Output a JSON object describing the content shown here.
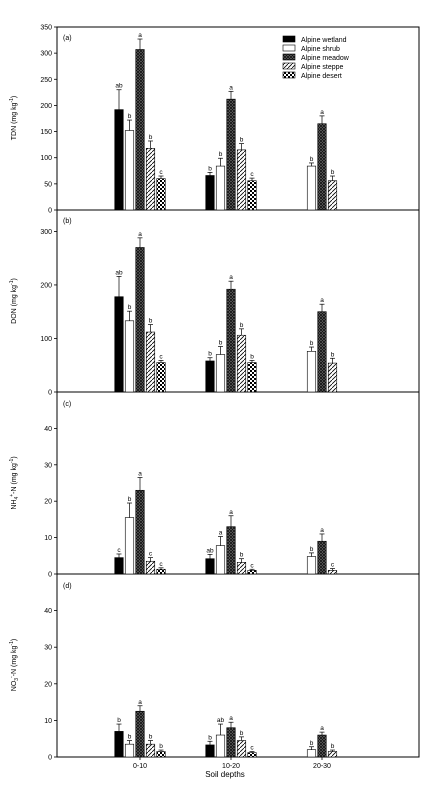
{
  "chart_data": {
    "type": "bar",
    "xlabel": "Soil depths",
    "categories": [
      "0-10",
      "10-20",
      "20-30"
    ],
    "legend": {
      "placement": "top-right",
      "entries": [
        "Alpine wetland",
        "Alpine shrub",
        "Alpine meadow",
        "Alpine steppe",
        "Alpine desert"
      ]
    },
    "series_styles": [
      {
        "name": "Alpine wetland",
        "fill": "#000000",
        "pattern": "solid"
      },
      {
        "name": "Alpine shrub",
        "fill": "#ffffff",
        "pattern": "open"
      },
      {
        "name": "Alpine meadow",
        "fill": "#555555",
        "pattern": "crosshatch"
      },
      {
        "name": "Alpine steppe",
        "fill": "#ffffff",
        "pattern": "diagonal"
      },
      {
        "name": "Alpine desert",
        "fill": "#ffffff",
        "pattern": "checker"
      }
    ],
    "panels": [
      {
        "label": "(a)",
        "ylabel_main": "TDN (mg kg",
        "ylabel_sup": "-1",
        "ylabel_tail": ")",
        "ylim": [
          0,
          350
        ],
        "yticks": [
          0,
          50,
          100,
          150,
          200,
          250,
          300,
          350
        ],
        "series": [
          {
            "name": "Alpine wetland",
            "values": [
              192,
              66,
              null
            ],
            "errors": [
              38,
              6,
              null
            ],
            "letters": [
              "ab",
              "b",
              ""
            ]
          },
          {
            "name": "Alpine shrub",
            "values": [
              152,
              84,
              84
            ],
            "errors": [
              20,
              15,
              6
            ],
            "letters": [
              "b",
              "b",
              "b"
            ]
          },
          {
            "name": "Alpine meadow",
            "values": [
              307,
              212,
              165
            ],
            "errors": [
              20,
              15,
              15
            ],
            "letters": [
              "a",
              "a",
              "a"
            ]
          },
          {
            "name": "Alpine steppe",
            "values": [
              118,
              115,
              56
            ],
            "errors": [
              14,
              12,
              9
            ],
            "letters": [
              "b",
              "b",
              "b"
            ]
          },
          {
            "name": "Alpine desert",
            "values": [
              60,
              56,
              null
            ],
            "errors": [
              5,
              5,
              null
            ],
            "letters": [
              "c",
              "c",
              ""
            ]
          }
        ]
      },
      {
        "label": "(b)",
        "ylabel_main": "DON (mg kg",
        "ylabel_sup": "-1",
        "ylabel_tail": ")",
        "ylim": [
          0,
          340
        ],
        "yticks": [
          0,
          100,
          200,
          300
        ],
        "series": [
          {
            "name": "Alpine wetland",
            "values": [
              178,
              58,
              null
            ],
            "errors": [
              38,
              6,
              null
            ],
            "letters": [
              "ab",
              "b",
              ""
            ]
          },
          {
            "name": "Alpine shrub",
            "values": [
              133,
              70,
              76
            ],
            "errors": [
              18,
              15,
              8
            ],
            "letters": [
              "b",
              "b",
              "b"
            ]
          },
          {
            "name": "Alpine meadow",
            "values": [
              270,
              192,
              150
            ],
            "errors": [
              18,
              15,
              14
            ],
            "letters": [
              "a",
              "a",
              "a"
            ]
          },
          {
            "name": "Alpine steppe",
            "values": [
              112,
              106,
              54
            ],
            "errors": [
              14,
              12,
              9
            ],
            "letters": [
              "b",
              "b",
              "b"
            ]
          },
          {
            "name": "Alpine desert",
            "values": [
              55,
              55,
              null
            ],
            "errors": [
              4,
              4,
              null
            ],
            "letters": [
              "c",
              "b",
              ""
            ]
          }
        ]
      },
      {
        "label": "(c)",
        "ylabel_main": "NH",
        "ylabel_sub": "4",
        "ylabel_sup": "+",
        "ylabel_mid": "-N (mg kg",
        "ylabel_sup2": "-1",
        "ylabel_tail": ")",
        "ylim": [
          0,
          50
        ],
        "yticks": [
          0,
          10,
          20,
          30,
          40
        ],
        "series": [
          {
            "name": "Alpine wetland",
            "values": [
              4.5,
              4.2,
              null
            ],
            "errors": [
              1,
              1.2,
              null
            ],
            "letters": [
              "c",
              "ab",
              ""
            ]
          },
          {
            "name": "Alpine shrub",
            "values": [
              15.5,
              7.8,
              4.8
            ],
            "errors": [
              4,
              2.5,
              1
            ],
            "letters": [
              "b",
              "a",
              "b"
            ]
          },
          {
            "name": "Alpine meadow",
            "values": [
              23,
              13,
              9
            ],
            "errors": [
              3.5,
              3,
              2
            ],
            "letters": [
              "a",
              "a",
              "a"
            ]
          },
          {
            "name": "Alpine steppe",
            "values": [
              3.5,
              3.2,
              1
            ],
            "errors": [
              1,
              1,
              0.5
            ],
            "letters": [
              "c",
              "b",
              "c"
            ]
          },
          {
            "name": "Alpine desert",
            "values": [
              1.3,
              1,
              null
            ],
            "errors": [
              0.4,
              0.3,
              null
            ],
            "letters": [
              "c",
              "c",
              ""
            ]
          }
        ]
      },
      {
        "label": "(d)",
        "ylabel_main": "NO",
        "ylabel_sub": "3",
        "ylabel_sup": "-",
        "ylabel_mid": "-N (mg kg",
        "ylabel_sup2": "-1",
        "ylabel_tail": ")",
        "ylim": [
          0,
          50
        ],
        "yticks": [
          0,
          10,
          20,
          30,
          40
        ],
        "series": [
          {
            "name": "Alpine wetland",
            "values": [
              7,
              3.3,
              null
            ],
            "errors": [
              2,
              1,
              null
            ],
            "letters": [
              "b",
              "b",
              ""
            ]
          },
          {
            "name": "Alpine shrub",
            "values": [
              3.5,
              6,
              2
            ],
            "errors": [
              1,
              3,
              0.8
            ],
            "letters": [
              "b",
              "ab",
              "b"
            ]
          },
          {
            "name": "Alpine meadow",
            "values": [
              12.5,
              8,
              6
            ],
            "errors": [
              1.5,
              1.5,
              0.8
            ],
            "letters": [
              "a",
              "a",
              "a"
            ]
          },
          {
            "name": "Alpine steppe",
            "values": [
              3.5,
              4.5,
              1.5
            ],
            "errors": [
              1,
              1,
              0.4
            ],
            "letters": [
              "b",
              "b",
              "b"
            ]
          },
          {
            "name": "Alpine desert",
            "values": [
              1.5,
              1.2,
              null
            ],
            "errors": [
              0.4,
              0.3,
              null
            ],
            "letters": [
              "b",
              "c",
              ""
            ]
          }
        ]
      }
    ]
  }
}
